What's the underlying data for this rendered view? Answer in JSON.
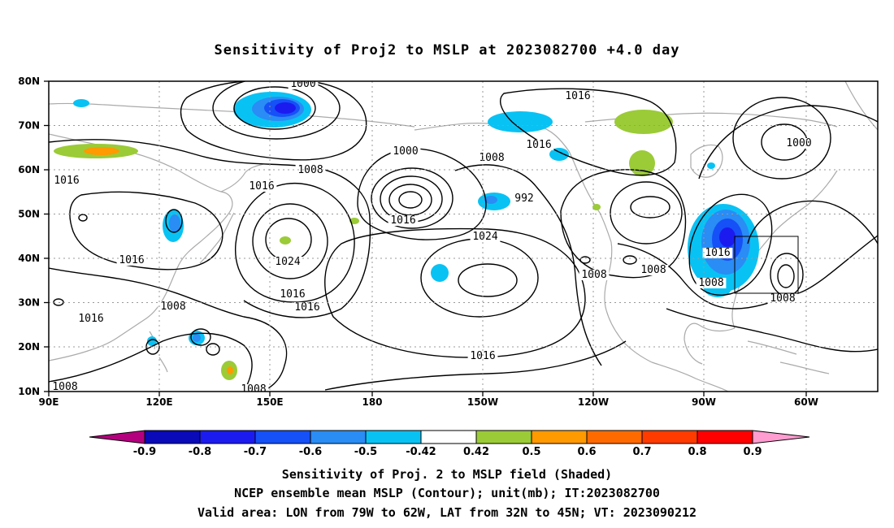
{
  "title": "Sensitivity of Proj2 to MSLP at 2023082700 +4.0 day",
  "axes": {
    "lat_labels": [
      "80N",
      "70N",
      "60N",
      "50N",
      "40N",
      "30N",
      "20N",
      "10N"
    ],
    "lon_labels": [
      "90E",
      "120E",
      "150E",
      "180",
      "150W",
      "120W",
      "90W",
      "60W"
    ]
  },
  "colorbar": {
    "labels": [
      "-0.9",
      "-0.8",
      "-0.7",
      "-0.6",
      "-0.5",
      "-0.42",
      "0.42",
      "0.5",
      "0.6",
      "0.7",
      "0.8",
      "0.9"
    ],
    "colors": [
      "#b4007e",
      "#0a0ab8",
      "#1b1bf0",
      "#1650f7",
      "#2a8cf5",
      "#09c2f4",
      "#ffffff",
      "#9bcb37",
      "#ff9a00",
      "#ff6a00",
      "#ff3b00",
      "#ff0000",
      "#ff9cd0"
    ]
  },
  "contour_labels": [
    "1000",
    "1016",
    "1016",
    "1000",
    "1000",
    "1008",
    "1008",
    "1016",
    "1016",
    "992",
    "1016",
    "1016",
    "1024",
    "1024",
    "1016",
    "1016",
    "1008",
    "1016",
    "1016",
    "1008",
    "1008",
    "1008",
    "1016",
    "1008",
    "1008",
    "1008"
  ],
  "caption": {
    "line1": "Sensitivity of Proj. 2 to MSLP field (Shaded)",
    "line2": "NCEP ensemble mean MSLP (Contour); unit(mb); IT:2023082700",
    "line3": "Valid area: LON from 79W to 62W, LAT from 32N to 45N; VT: 2023090212"
  }
}
